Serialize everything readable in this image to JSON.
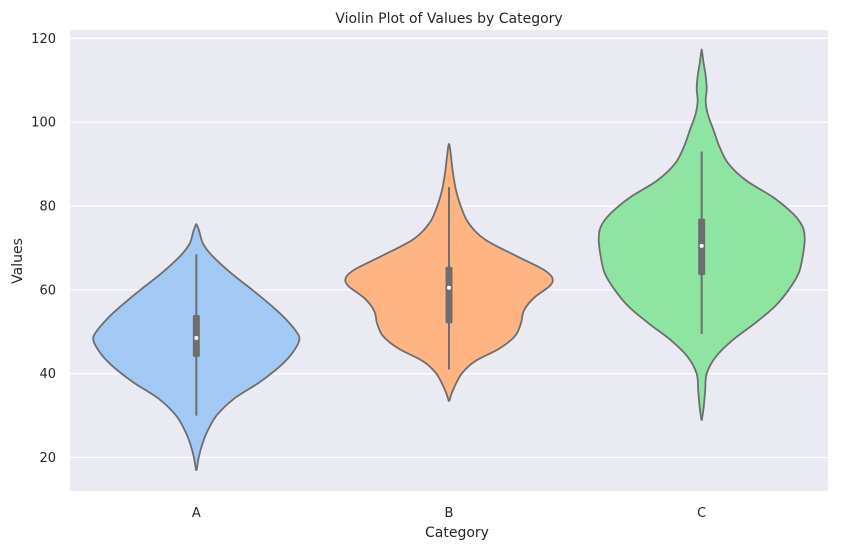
{
  "chart_data": {
    "type": "violin",
    "title": "Violin Plot of Values by Category",
    "xlabel": "Category",
    "ylabel": "Values",
    "ylim": [
      12,
      122
    ],
    "yticks": [
      20,
      40,
      60,
      80,
      100,
      120
    ],
    "grid": true,
    "colors": {
      "background": "#eaeaf2",
      "grid": "#ffffff",
      "outline": "#6e6e6e"
    },
    "categories": [
      "A",
      "B",
      "C"
    ],
    "series": [
      {
        "category": "A",
        "color": "#a1c9f4",
        "min": 30,
        "q1": 44,
        "median": 48.5,
        "q3": 54,
        "max": 68.5,
        "density": [
          [
            17,
            0.3
          ],
          [
            20,
            2.5
          ],
          [
            23,
            6
          ],
          [
            26,
            11
          ],
          [
            30,
            21
          ],
          [
            34,
            39
          ],
          [
            38,
            66
          ],
          [
            42,
            88
          ],
          [
            45,
            100
          ],
          [
            48,
            107
          ],
          [
            50,
            104
          ],
          [
            53,
            93
          ],
          [
            56,
            79
          ],
          [
            60,
            58
          ],
          [
            64,
            36
          ],
          [
            68,
            17
          ],
          [
            71,
            7
          ],
          [
            74,
            3
          ],
          [
            75.5,
            0.5
          ]
        ]
      },
      {
        "category": "B",
        "color": "#ffb482",
        "min": 41,
        "q1": 52,
        "median": 60.5,
        "q3": 65.5,
        "max": 84.5,
        "density": [
          [
            33.5,
            0.3
          ],
          [
            36,
            4
          ],
          [
            40,
            13
          ],
          [
            43,
            27
          ],
          [
            46,
            52
          ],
          [
            49,
            68
          ],
          [
            52,
            74
          ],
          [
            55,
            77
          ],
          [
            58,
            87
          ],
          [
            61,
            104
          ],
          [
            63,
            106
          ],
          [
            65,
            96
          ],
          [
            68,
            70
          ],
          [
            72,
            37
          ],
          [
            76,
            20
          ],
          [
            80,
            12
          ],
          [
            84,
            7
          ],
          [
            88,
            4
          ],
          [
            92,
            2
          ],
          [
            94.5,
            0.5
          ]
        ]
      },
      {
        "category": "C",
        "color": "#8de5a1",
        "min": 49.5,
        "q1": 63.5,
        "median": 70.5,
        "q3": 77,
        "max": 93,
        "density": [
          [
            29,
            0.3
          ],
          [
            32,
            2
          ],
          [
            36,
            3.5
          ],
          [
            40,
            5
          ],
          [
            44,
            14
          ],
          [
            48,
            31
          ],
          [
            52,
            53
          ],
          [
            56,
            73
          ],
          [
            60,
            87
          ],
          [
            64,
            97
          ],
          [
            68,
            101
          ],
          [
            72,
            103
          ],
          [
            75,
            101
          ],
          [
            78,
            92
          ],
          [
            82,
            72
          ],
          [
            86,
            45
          ],
          [
            90,
            27
          ],
          [
            94,
            18
          ],
          [
            98,
            12
          ],
          [
            102,
            6
          ],
          [
            105,
            4
          ],
          [
            108,
            5
          ],
          [
            111,
            4
          ],
          [
            114,
            2
          ],
          [
            117,
            0.3
          ]
        ]
      }
    ]
  }
}
